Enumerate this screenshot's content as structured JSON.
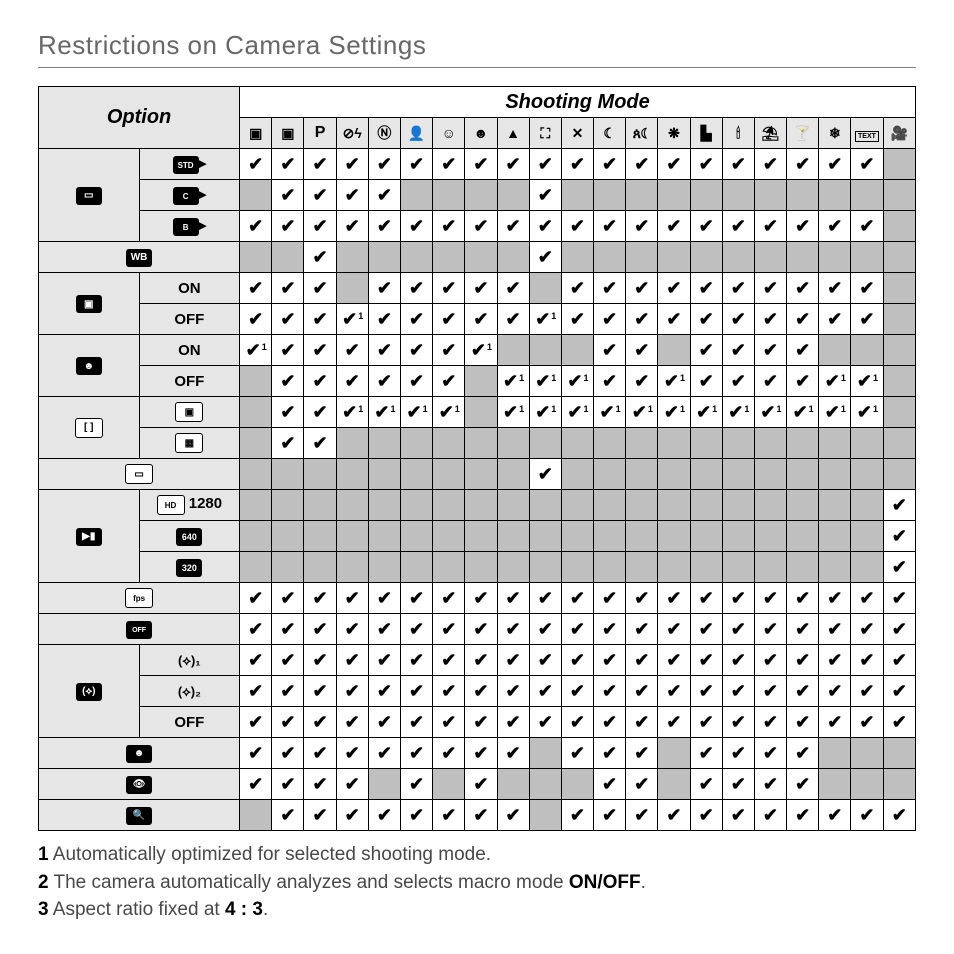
{
  "title": "Restrictions on Camera Settings",
  "headers": {
    "option": "Option",
    "shooting": "Shooting Mode"
  },
  "mode_names": [
    "scene-auto",
    "camera",
    "P",
    "flash-off",
    "N",
    "portrait",
    "baby",
    "smile",
    "mountain",
    "panorama",
    "sport",
    "night",
    "night-portrait",
    "fireworks",
    "sunset",
    "candle",
    "beach",
    "party",
    "snow",
    "text",
    "movie"
  ],
  "mode_glyph": [
    "▣",
    "▣",
    "P",
    "⊘ϟ",
    "Ⓝ",
    "👤",
    "☺",
    "☻",
    "▲",
    "⛶",
    "✕",
    "☾",
    "ጰ☾",
    "❋",
    "▙",
    "🕯",
    "⛱",
    "🍸",
    "❄",
    "TEXT",
    "🎥"
  ],
  "option_groups": [
    {
      "name": "image-size",
      "icon": "img-size",
      "rows": [
        {
          "name": "std",
          "label": "STD▸",
          "cells": [
            "c",
            "c",
            "c",
            "c",
            "c",
            "c",
            "c",
            "c",
            "c",
            "c",
            "c",
            "c",
            "c",
            "c",
            "c",
            "c",
            "c",
            "c",
            "c",
            "c",
            "g"
          ]
        },
        {
          "name": "crop",
          "label": "C▸",
          "cells": [
            "g",
            "c",
            "c",
            "c",
            "c",
            "g",
            "g",
            "g",
            "g",
            "c",
            "g",
            "g",
            "g",
            "g",
            "g",
            "g",
            "g",
            "g",
            "g",
            "g",
            "g"
          ]
        },
        {
          "name": "basic",
          "label": "B▸",
          "cells": [
            "c",
            "c",
            "c",
            "c",
            "c",
            "c",
            "c",
            "c",
            "c",
            "c",
            "c",
            "c",
            "c",
            "c",
            "c",
            "c",
            "c",
            "c",
            "c",
            "c",
            "g"
          ]
        }
      ]
    },
    {
      "name": "wb",
      "icon": "WB",
      "span": true,
      "rows": [
        {
          "name": "wb",
          "label": "",
          "cells": [
            "g",
            "g",
            "c",
            "g",
            "g",
            "g",
            "g",
            "g",
            "g",
            "c",
            "g",
            "g",
            "g",
            "g",
            "g",
            "g",
            "g",
            "g",
            "g",
            "g",
            "g"
          ]
        }
      ]
    },
    {
      "name": "continuous",
      "icon": "continuous",
      "rows": [
        {
          "name": "on",
          "label": "ON",
          "cells": [
            "c",
            "c",
            "c",
            "g",
            "c",
            "c",
            "c",
            "c",
            "c",
            "g",
            "c",
            "c",
            "c",
            "c",
            "c",
            "c",
            "c",
            "c",
            "c",
            "c",
            "g"
          ]
        },
        {
          "name": "off",
          "label": "OFF",
          "cells": [
            "c",
            "c",
            "c",
            "c1",
            "c",
            "c",
            "c",
            "c",
            "c",
            "c1",
            "c",
            "c",
            "c",
            "c",
            "c",
            "c",
            "c",
            "c",
            "c",
            "c",
            "g"
          ]
        }
      ]
    },
    {
      "name": "face",
      "icon": "face",
      "rows": [
        {
          "name": "on",
          "label": "ON",
          "cells": [
            "c1",
            "c",
            "c",
            "c",
            "c",
            "c",
            "c",
            "c1",
            "g",
            "g",
            "g",
            "c",
            "c",
            "g",
            "c",
            "c",
            "c",
            "c",
            "g",
            "g",
            "g"
          ]
        },
        {
          "name": "off",
          "label": "OFF",
          "cells": [
            "g",
            "c",
            "c",
            "c",
            "c",
            "c",
            "c",
            "g",
            "c1",
            "c1",
            "c1",
            "c",
            "c",
            "c1",
            "c",
            "c",
            "c",
            "c",
            "c1",
            "c1",
            "g"
          ]
        }
      ]
    },
    {
      "name": "af-area",
      "icon": "af-area",
      "rows": [
        {
          "name": "center",
          "label": "▣",
          "cells": [
            "g",
            "c",
            "c",
            "c1",
            "c1",
            "c1",
            "c1",
            "g",
            "c1",
            "c1",
            "c1",
            "c1",
            "c1",
            "c1",
            "c1",
            "c1",
            "c1",
            "c1",
            "c1",
            "c1",
            "g"
          ]
        },
        {
          "name": "multi",
          "label": "▦",
          "cells": [
            "g",
            "c",
            "c",
            "g",
            "g",
            "g",
            "g",
            "g",
            "g",
            "g",
            "g",
            "g",
            "g",
            "g",
            "g",
            "g",
            "g",
            "g",
            "g",
            "g",
            "g"
          ]
        }
      ]
    },
    {
      "name": "aspect",
      "icon": "aspect",
      "span": true,
      "rows": [
        {
          "name": "aspect",
          "label": "",
          "cells": [
            "g",
            "g",
            "g",
            "g",
            "g",
            "g",
            "g",
            "g",
            "g",
            "c",
            "g",
            "g",
            "g",
            "g",
            "g",
            "g",
            "g",
            "g",
            "g",
            "g",
            "g"
          ]
        }
      ]
    },
    {
      "name": "movie-size",
      "icon": "movie",
      "rows": [
        {
          "name": "1280",
          "label": "HD 1280",
          "cells": [
            "g",
            "g",
            "g",
            "g",
            "g",
            "g",
            "g",
            "g",
            "g",
            "g",
            "g",
            "g",
            "g",
            "g",
            "g",
            "g",
            "g",
            "g",
            "g",
            "g",
            "c"
          ]
        },
        {
          "name": "640",
          "label": "640",
          "cells": [
            "g",
            "g",
            "g",
            "g",
            "g",
            "g",
            "g",
            "g",
            "g",
            "g",
            "g",
            "g",
            "g",
            "g",
            "g",
            "g",
            "g",
            "g",
            "g",
            "g",
            "c"
          ]
        },
        {
          "name": "320",
          "label": "320",
          "cells": [
            "g",
            "g",
            "g",
            "g",
            "g",
            "g",
            "g",
            "g",
            "g",
            "g",
            "g",
            "g",
            "g",
            "g",
            "g",
            "g",
            "g",
            "g",
            "g",
            "g",
            "c"
          ]
        }
      ]
    },
    {
      "name": "fps",
      "icon": "fps",
      "span": true,
      "rows": [
        {
          "name": "fps",
          "label": "",
          "cells": [
            "c",
            "c",
            "c",
            "c",
            "c",
            "c",
            "c",
            "c",
            "c",
            "c",
            "c",
            "c",
            "c",
            "c",
            "c",
            "c",
            "c",
            "c",
            "c",
            "c",
            "c"
          ]
        }
      ]
    },
    {
      "name": "off-mode",
      "icon": "off-cam",
      "span": true,
      "rows": [
        {
          "name": "off-mode",
          "label": "",
          "cells": [
            "c",
            "c",
            "c",
            "c",
            "c",
            "c",
            "c",
            "c",
            "c",
            "c",
            "c",
            "c",
            "c",
            "c",
            "c",
            "c",
            "c",
            "c",
            "c",
            "c",
            "c"
          ]
        }
      ]
    },
    {
      "name": "vr",
      "icon": "vr",
      "rows": [
        {
          "name": "vr1",
          "label": "(⟡)₁",
          "cells": [
            "c",
            "c",
            "c",
            "c",
            "c",
            "c",
            "c",
            "c",
            "c",
            "c",
            "c",
            "c",
            "c",
            "c",
            "c",
            "c",
            "c",
            "c",
            "c",
            "c",
            "c"
          ]
        },
        {
          "name": "vr2",
          "label": "(⟡)₂",
          "cells": [
            "c",
            "c",
            "c",
            "c",
            "c",
            "c",
            "c",
            "c",
            "c",
            "c",
            "c",
            "c",
            "c",
            "c",
            "c",
            "c",
            "c",
            "c",
            "c",
            "c",
            "c"
          ]
        },
        {
          "name": "off",
          "label": "OFF",
          "cells": [
            "c",
            "c",
            "c",
            "c",
            "c",
            "c",
            "c",
            "c",
            "c",
            "c",
            "c",
            "c",
            "c",
            "c",
            "c",
            "c",
            "c",
            "c",
            "c",
            "c",
            "c"
          ]
        }
      ]
    },
    {
      "name": "smile",
      "icon": "smile-blk",
      "span": true,
      "rows": [
        {
          "name": "smile",
          "label": "",
          "cells": [
            "c",
            "c",
            "c",
            "c",
            "c",
            "c",
            "c",
            "c",
            "c",
            "g",
            "c",
            "c",
            "c",
            "g",
            "c",
            "c",
            "c",
            "c",
            "g",
            "g",
            "g"
          ]
        }
      ]
    },
    {
      "name": "blink",
      "icon": "eye-blk",
      "span": true,
      "rows": [
        {
          "name": "blink",
          "label": "",
          "cells": [
            "c",
            "c",
            "c",
            "c",
            "g",
            "c",
            "g",
            "c",
            "g",
            "g",
            "g",
            "c",
            "c",
            "g",
            "c",
            "c",
            "c",
            "c",
            "g",
            "g",
            "g"
          ]
        }
      ]
    },
    {
      "name": "zoom",
      "icon": "zoom-blk",
      "span": true,
      "rows": [
        {
          "name": "zoom",
          "label": "",
          "cells": [
            "g",
            "c",
            "c",
            "c",
            "c",
            "c",
            "c",
            "c",
            "c",
            "g",
            "c",
            "c",
            "c",
            "c",
            "c",
            "c",
            "c",
            "c",
            "c",
            "c",
            "c"
          ]
        }
      ]
    }
  ],
  "notes": [
    {
      "n": "1",
      "text": " Automatically optimized for selected shooting mode."
    },
    {
      "n": "2",
      "text": " The camera automatically analyzes and selects macro mode ",
      "strong": "ON/OFF",
      "tail": "."
    },
    {
      "n": "3",
      "text": " Aspect ratio fixed at ",
      "strong": "4 : 3",
      "tail": "."
    }
  ]
}
